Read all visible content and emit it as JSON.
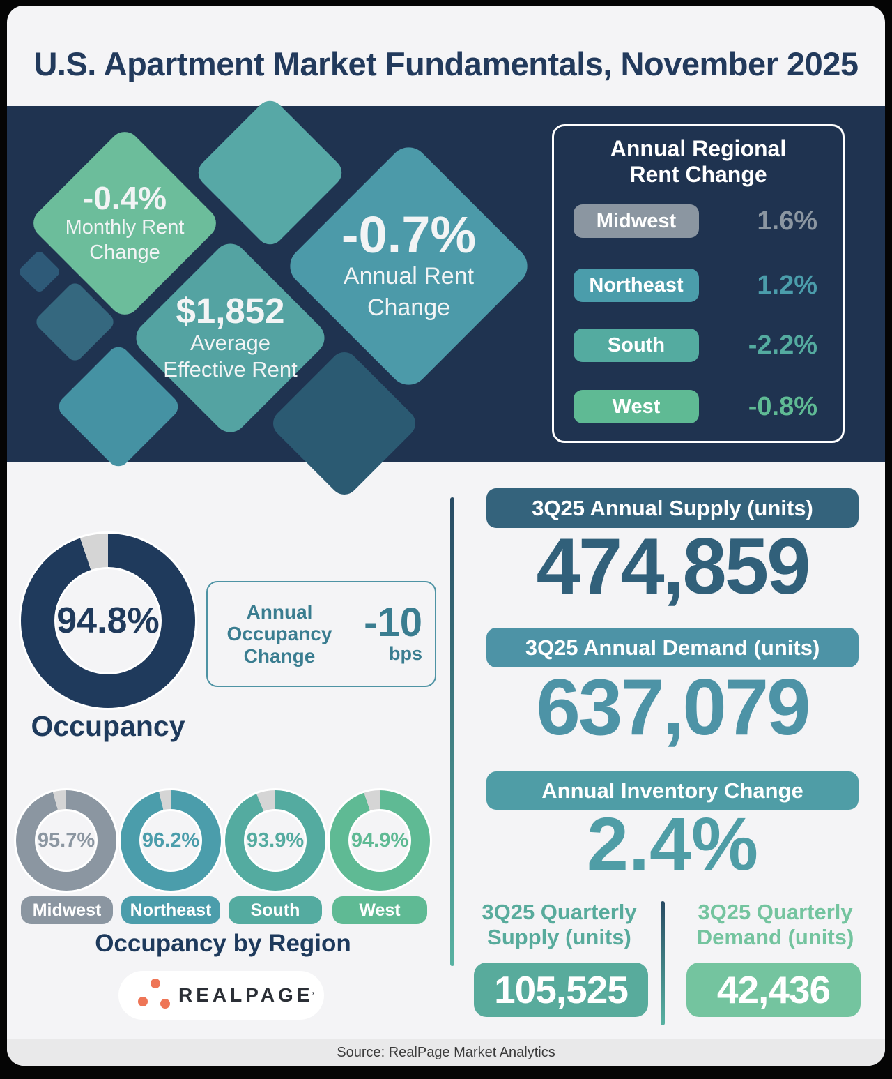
{
  "title": "U.S. Apartment Market Fundamentals, November 2025",
  "hero": {
    "monthly_rent_change": {
      "value": "-0.4%",
      "label_line1": "Monthly Rent",
      "label_line2": "Change"
    },
    "average_effective_rent": {
      "value": "$1,852",
      "label_line1": "Average",
      "label_line2": "Effective Rent"
    },
    "annual_rent_change": {
      "value": "-0.7%",
      "label_line1": "Annual Rent",
      "label_line2": "Change"
    }
  },
  "regional_panel": {
    "title_line1": "Annual Regional",
    "title_line2": "Rent Change"
  },
  "regions": [
    {
      "name": "Midwest",
      "rent_change": "1.6%",
      "occupancy": "95.7%",
      "occupancy_pct": 95.7,
      "color": "#8b96a1"
    },
    {
      "name": "Northeast",
      "rent_change": "1.2%",
      "occupancy": "96.2%",
      "occupancy_pct": 96.2,
      "color": "#4b9dab"
    },
    {
      "name": "South",
      "rent_change": "-2.2%",
      "occupancy": "93.9%",
      "occupancy_pct": 93.9,
      "color": "#54aba0"
    },
    {
      "name": "West",
      "rent_change": "-0.8%",
      "occupancy": "94.9%",
      "occupancy_pct": 94.9,
      "color": "#5fba94"
    }
  ],
  "occupancy": {
    "value": "94.8%",
    "pct": 94.8,
    "color": "#1f3a5c",
    "label": "Occupancy"
  },
  "occupancy_change": {
    "label_line1": "Annual",
    "label_line2": "Occupancy",
    "label_line3": "Change",
    "value": "-10",
    "unit": "bps"
  },
  "region_section": {
    "caption": "Occupancy by Region"
  },
  "supply_demand": {
    "annual_supply_header": "3Q25 Annual Supply (units)",
    "annual_supply_value": "474,859",
    "annual_demand_header": "3Q25 Annual Demand (units)",
    "annual_demand_value": "637,079",
    "inventory_header": "Annual Inventory Change",
    "inventory_value": "2.4%",
    "quarterly_supply_label_line1": "3Q25 Quarterly",
    "quarterly_supply_label_line2": "Supply (units)",
    "quarterly_supply_value": "105,525",
    "quarterly_demand_label_line1": "3Q25 Quarterly",
    "quarterly_demand_label_line2": "Demand (units)",
    "quarterly_demand_value": "42,436"
  },
  "logo": {
    "text": "REALPAGE",
    "dot_color": "#ee7556"
  },
  "source": "Source: RealPage Market Analytics",
  "palette": {
    "navy_background": "#1f3350",
    "card_background": "#f4f4f6",
    "title_navy": "#223a5c",
    "donut_gap": "#d5d5d5",
    "diamond_green": "#6cbd9b",
    "diamond_teal": "#54a3a2",
    "diamond_blue_teal": "#4c9aa9",
    "supply_dark": "#34637c",
    "supply_number": "#31607a",
    "demand_teal": "#4d93a6",
    "inventory_teal": "#4f9da6",
    "quarterly_supply_teal": "#58ab9c",
    "quarterly_demand_green": "#74c49f",
    "occupancy_box_teal": "#3a7d90"
  },
  "chart_data": [
    {
      "type": "pie",
      "title": "Occupancy",
      "labels": [
        "Occupied",
        "Vacant"
      ],
      "values": [
        94.8,
        5.2
      ]
    },
    {
      "type": "pie",
      "title": "Midwest Occupancy",
      "labels": [
        "Occupied",
        "Vacant"
      ],
      "values": [
        95.7,
        4.3
      ]
    },
    {
      "type": "pie",
      "title": "Northeast Occupancy",
      "labels": [
        "Occupied",
        "Vacant"
      ],
      "values": [
        96.2,
        3.8
      ]
    },
    {
      "type": "pie",
      "title": "South Occupancy",
      "labels": [
        "Occupied",
        "Vacant"
      ],
      "values": [
        93.9,
        6.1
      ]
    },
    {
      "type": "pie",
      "title": "West Occupancy",
      "labels": [
        "Occupied",
        "Vacant"
      ],
      "values": [
        94.9,
        5.1
      ]
    },
    {
      "type": "bar",
      "title": "Annual Regional Rent Change (%)",
      "categories": [
        "Midwest",
        "Northeast",
        "South",
        "West"
      ],
      "values": [
        1.6,
        1.2,
        -2.2,
        -0.8
      ]
    }
  ]
}
